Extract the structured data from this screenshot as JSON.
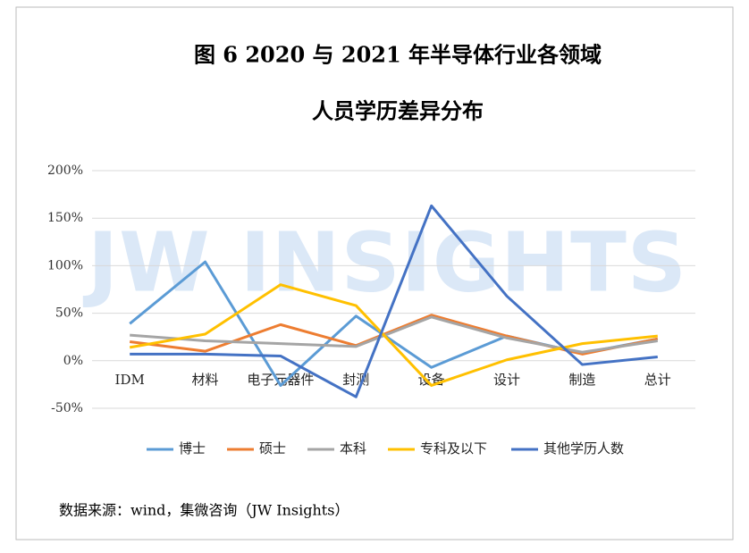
{
  "chart_data": {
    "type": "line",
    "title_lines": [
      "图 6 2020 与 2021 年半导体行业各领域",
      "人员学历差异分布"
    ],
    "watermark": "JW INSIGHTS",
    "source": "数据来源：wind，集微咨询（JW Insights）",
    "categories": [
      "IDM",
      "材料",
      "电子元器件",
      "封测",
      "设备",
      "设计",
      "制造",
      "总计"
    ],
    "series": [
      {
        "name": "博士",
        "color": "#5b9bd5",
        "values": [
          39,
          104,
          -26,
          47,
          -7,
          26,
          8,
          23
        ]
      },
      {
        "name": "硕士",
        "color": "#ed7d31",
        "values": [
          20,
          10,
          38,
          16,
          48,
          26,
          7,
          23
        ]
      },
      {
        "name": "本科",
        "color": "#a5a5a5",
        "values": [
          27,
          21,
          18,
          15,
          46,
          24,
          9,
          21
        ]
      },
      {
        "name": "专科及以下",
        "color": "#ffc000",
        "values": [
          14,
          28,
          80,
          58,
          -26,
          1,
          18,
          26
        ]
      },
      {
        "name": "其他学历人数",
        "color": "#4472c4",
        "values": [
          7,
          7,
          5,
          -38,
          163,
          68,
          -4,
          4
        ]
      }
    ],
    "ylim": [
      -50,
      200
    ],
    "yticks": [
      {
        "value": 200,
        "label": "200%"
      },
      {
        "value": 150,
        "label": "150%"
      },
      {
        "value": 100,
        "label": "100%"
      },
      {
        "value": 50,
        "label": "50%"
      },
      {
        "value": 0,
        "label": "0%"
      },
      {
        "value": -50,
        "label": "-50%"
      }
    ],
    "grid": true,
    "legend": "bottom"
  }
}
